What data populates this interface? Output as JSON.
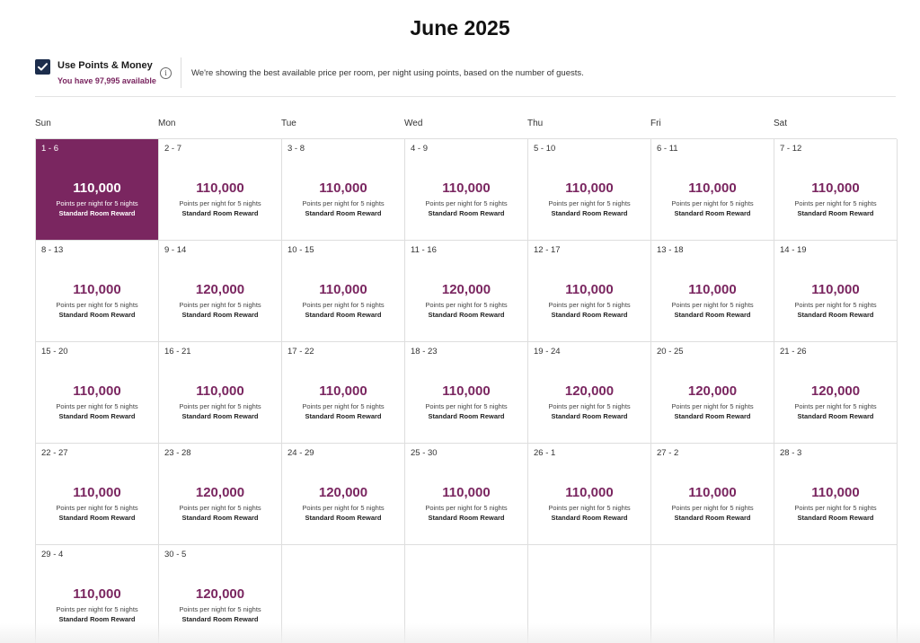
{
  "title": "June 2025",
  "points_toggle": {
    "label": "Use Points & Money",
    "checked": true,
    "available_text": "You have 97,995 available",
    "info_text": "We're showing the best available price per room, per night using points, based on the number of guests."
  },
  "days_of_week": [
    "Sun",
    "Mon",
    "Tue",
    "Wed",
    "Thu",
    "Fri",
    "Sat"
  ],
  "cells": [
    {
      "range": "1 - 6",
      "price": "110,000",
      "sub": "Points per night for 5 nights",
      "reward": "Standard Room Reward",
      "selected": true
    },
    {
      "range": "2 - 7",
      "price": "110,000",
      "sub": "Points per night for 5 nights",
      "reward": "Standard Room Reward"
    },
    {
      "range": "3 - 8",
      "price": "110,000",
      "sub": "Points per night for 5 nights",
      "reward": "Standard Room Reward"
    },
    {
      "range": "4 - 9",
      "price": "110,000",
      "sub": "Points per night for 5 nights",
      "reward": "Standard Room Reward"
    },
    {
      "range": "5 - 10",
      "price": "110,000",
      "sub": "Points per night for 5 nights",
      "reward": "Standard Room Reward"
    },
    {
      "range": "6 - 11",
      "price": "110,000",
      "sub": "Points per night for 5 nights",
      "reward": "Standard Room Reward"
    },
    {
      "range": "7 - 12",
      "price": "110,000",
      "sub": "Points per night for 5 nights",
      "reward": "Standard Room Reward"
    },
    {
      "range": "8 - 13",
      "price": "110,000",
      "sub": "Points per night for 5 nights",
      "reward": "Standard Room Reward"
    },
    {
      "range": "9 - 14",
      "price": "120,000",
      "sub": "Points per night for 5 nights",
      "reward": "Standard Room Reward"
    },
    {
      "range": "10 - 15",
      "price": "110,000",
      "sub": "Points per night for 5 nights",
      "reward": "Standard Room Reward"
    },
    {
      "range": "11 - 16",
      "price": "120,000",
      "sub": "Points per night for 5 nights",
      "reward": "Standard Room Reward"
    },
    {
      "range": "12 - 17",
      "price": "110,000",
      "sub": "Points per night for 5 nights",
      "reward": "Standard Room Reward"
    },
    {
      "range": "13 - 18",
      "price": "110,000",
      "sub": "Points per night for 5 nights",
      "reward": "Standard Room Reward"
    },
    {
      "range": "14 - 19",
      "price": "110,000",
      "sub": "Points per night for 5 nights",
      "reward": "Standard Room Reward"
    },
    {
      "range": "15 - 20",
      "price": "110,000",
      "sub": "Points per night for 5 nights",
      "reward": "Standard Room Reward"
    },
    {
      "range": "16 - 21",
      "price": "110,000",
      "sub": "Points per night for 5 nights",
      "reward": "Standard Room Reward"
    },
    {
      "range": "17 - 22",
      "price": "110,000",
      "sub": "Points per night for 5 nights",
      "reward": "Standard Room Reward"
    },
    {
      "range": "18 - 23",
      "price": "110,000",
      "sub": "Points per night for 5 nights",
      "reward": "Standard Room Reward"
    },
    {
      "range": "19 - 24",
      "price": "120,000",
      "sub": "Points per night for 5 nights",
      "reward": "Standard Room Reward"
    },
    {
      "range": "20 - 25",
      "price": "120,000",
      "sub": "Points per night for 5 nights",
      "reward": "Standard Room Reward"
    },
    {
      "range": "21 - 26",
      "price": "120,000",
      "sub": "Points per night for 5 nights",
      "reward": "Standard Room Reward"
    },
    {
      "range": "22 - 27",
      "price": "110,000",
      "sub": "Points per night for 5 nights",
      "reward": "Standard Room Reward"
    },
    {
      "range": "23 - 28",
      "price": "120,000",
      "sub": "Points per night for 5 nights",
      "reward": "Standard Room Reward"
    },
    {
      "range": "24 - 29",
      "price": "120,000",
      "sub": "Points per night for 5 nights",
      "reward": "Standard Room Reward"
    },
    {
      "range": "25 - 30",
      "price": "110,000",
      "sub": "Points per night for 5 nights",
      "reward": "Standard Room Reward"
    },
    {
      "range": "26 - 1",
      "price": "110,000",
      "sub": "Points per night for 5 nights",
      "reward": "Standard Room Reward"
    },
    {
      "range": "27 - 2",
      "price": "110,000",
      "sub": "Points per night for 5 nights",
      "reward": "Standard Room Reward"
    },
    {
      "range": "28 - 3",
      "price": "110,000",
      "sub": "Points per night for 5 nights",
      "reward": "Standard Room Reward"
    },
    {
      "range": "29 - 4",
      "price": "110,000",
      "sub": "Points per night for 5 nights",
      "reward": "Standard Room Reward"
    },
    {
      "range": "30 - 5",
      "price": "120,000",
      "sub": "Points per night for 5 nights",
      "reward": "Standard Room Reward"
    },
    {
      "empty": true
    },
    {
      "empty": true
    },
    {
      "empty": true
    },
    {
      "empty": true
    },
    {
      "empty": true
    }
  ],
  "colors": {
    "accent": "#7a2660",
    "checkbox": "#1c2d4c"
  }
}
